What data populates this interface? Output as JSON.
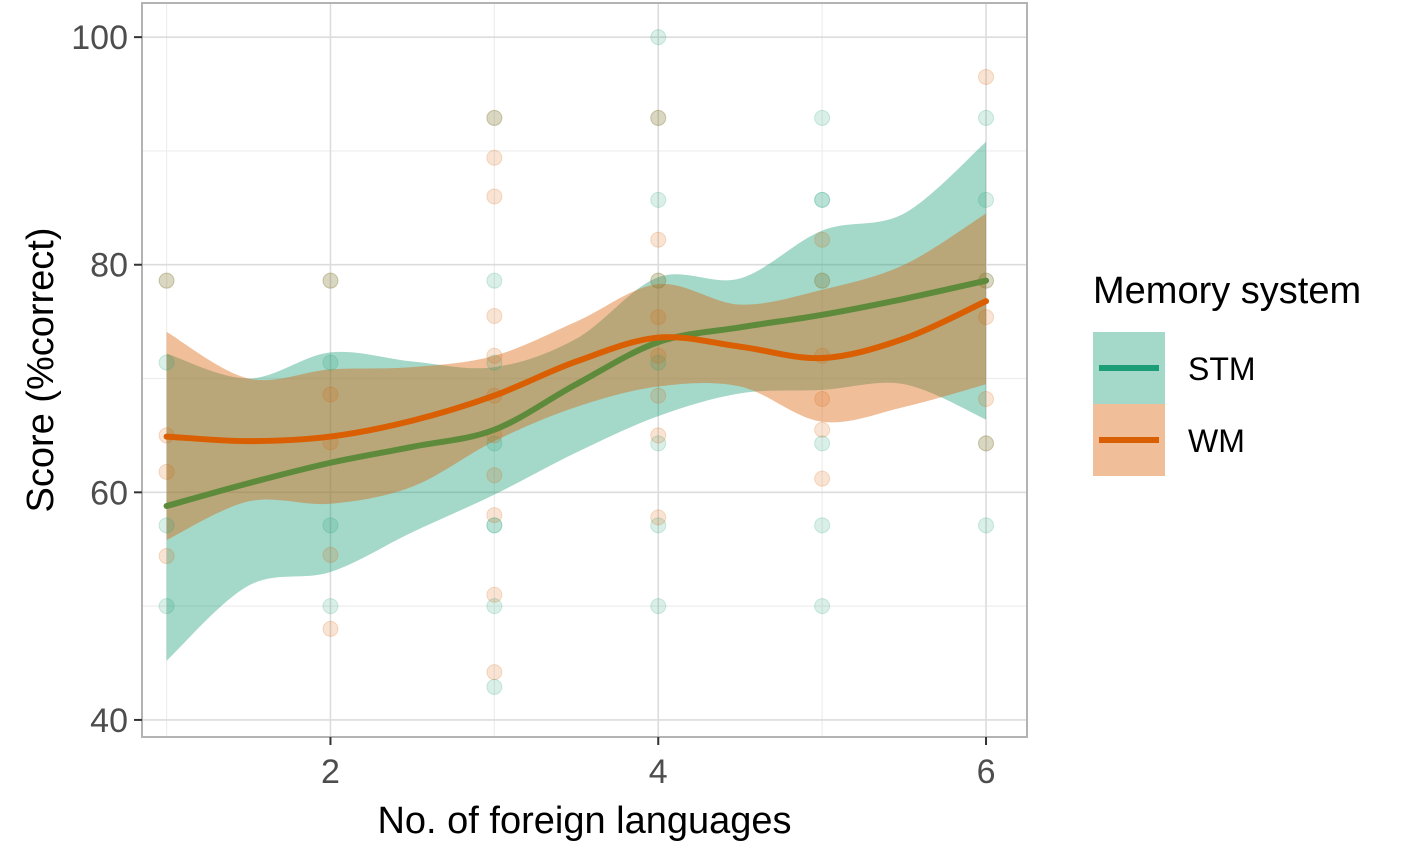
{
  "chart_data": {
    "type": "scatter",
    "title": "",
    "xlabel": "No. of foreign languages",
    "ylabel": "Score (%correct)",
    "xlim": [
      0.85,
      6.25
    ],
    "ylim": [
      38.5,
      103
    ],
    "x_ticks": [
      2,
      4,
      6
    ],
    "y_ticks": [
      40,
      60,
      80,
      100
    ],
    "grid": true,
    "legend": {
      "title": "Memory system",
      "position": "right",
      "entries": [
        "STM",
        "WM"
      ]
    },
    "series": [
      {
        "name": "STM",
        "color": "#1b9e77",
        "points": [
          [
            1,
            78.6
          ],
          [
            1,
            71.4
          ],
          [
            1,
            57.1
          ],
          [
            1,
            50
          ],
          [
            2,
            78.6
          ],
          [
            2,
            71.4
          ],
          [
            2,
            57.1
          ],
          [
            2,
            50
          ],
          [
            3,
            92.9
          ],
          [
            3,
            78.6
          ],
          [
            3,
            71.4
          ],
          [
            3,
            64.3
          ],
          [
            3,
            57.1
          ],
          [
            3,
            57.1
          ],
          [
            3,
            50
          ],
          [
            3,
            42.9
          ],
          [
            4,
            100
          ],
          [
            4,
            92.9
          ],
          [
            4,
            85.7
          ],
          [
            4,
            78.6
          ],
          [
            4,
            71.4
          ],
          [
            4,
            64.3
          ],
          [
            4,
            57.1
          ],
          [
            4,
            50
          ],
          [
            5,
            92.9
          ],
          [
            5,
            85.7
          ],
          [
            5,
            85.7
          ],
          [
            5,
            78.6
          ],
          [
            5,
            64.3
          ],
          [
            5,
            57.1
          ],
          [
            5,
            50
          ],
          [
            6,
            92.9
          ],
          [
            6,
            85.7
          ],
          [
            6,
            78.6
          ],
          [
            6,
            64.3
          ],
          [
            6,
            57.1
          ]
        ],
        "smooth": {
          "x": [
            1,
            1.5,
            2,
            2.5,
            3,
            3.5,
            4,
            4.5,
            5,
            5.5,
            6
          ],
          "fit": [
            58.8,
            60.8,
            62.6,
            64,
            65.5,
            69.5,
            73.2,
            74.5,
            75.6,
            77,
            78.6
          ],
          "lower": [
            45.2,
            51.8,
            53,
            56.5,
            59.8,
            63.5,
            66.7,
            68.7,
            69,
            69.5,
            66.4
          ],
          "upper": [
            72.2,
            70,
            72.3,
            71.5,
            71,
            73.5,
            78.9,
            78.8,
            83,
            84.5,
            90.8
          ]
        }
      },
      {
        "name": "WM",
        "color": "#d95f02",
        "points": [
          [
            1,
            78.6
          ],
          [
            1,
            65
          ],
          [
            1,
            61.8
          ],
          [
            1,
            54.4
          ],
          [
            2,
            78.6
          ],
          [
            2,
            68.6
          ],
          [
            2,
            64.4
          ],
          [
            2,
            54.5
          ],
          [
            2,
            48
          ],
          [
            3,
            92.9
          ],
          [
            3,
            89.4
          ],
          [
            3,
            86
          ],
          [
            3,
            75.5
          ],
          [
            3,
            72
          ],
          [
            3,
            68.5
          ],
          [
            3,
            65
          ],
          [
            3,
            61.5
          ],
          [
            3,
            58
          ],
          [
            3,
            51
          ],
          [
            3,
            44.2
          ],
          [
            4,
            92.9
          ],
          [
            4,
            82.2
          ],
          [
            4,
            78.6
          ],
          [
            4,
            75.4
          ],
          [
            4,
            72
          ],
          [
            4,
            68.5
          ],
          [
            4,
            65
          ],
          [
            4,
            57.8
          ],
          [
            5,
            82.2
          ],
          [
            5,
            78.6
          ],
          [
            5,
            72
          ],
          [
            5,
            68.2
          ],
          [
            5,
            65.5
          ],
          [
            5,
            61.2
          ],
          [
            6,
            96.5
          ],
          [
            6,
            78.6
          ],
          [
            6,
            75.4
          ],
          [
            6,
            68.2
          ],
          [
            6,
            64.3
          ]
        ],
        "smooth": {
          "x": [
            1,
            1.5,
            2,
            2.5,
            3,
            3.5,
            4,
            4.5,
            5,
            5.5,
            6
          ],
          "fit": [
            64.9,
            64.5,
            64.9,
            66.3,
            68.5,
            71.5,
            73.6,
            72.8,
            71.8,
            73.5,
            76.8
          ],
          "lower": [
            55.8,
            59.2,
            59,
            60.5,
            64.5,
            67.5,
            69.3,
            69.3,
            66.2,
            67.5,
            69.5
          ],
          "upper": [
            74.1,
            70,
            70.8,
            71,
            72,
            75,
            78.3,
            76.5,
            77.8,
            80,
            84.5
          ]
        }
      }
    ]
  }
}
